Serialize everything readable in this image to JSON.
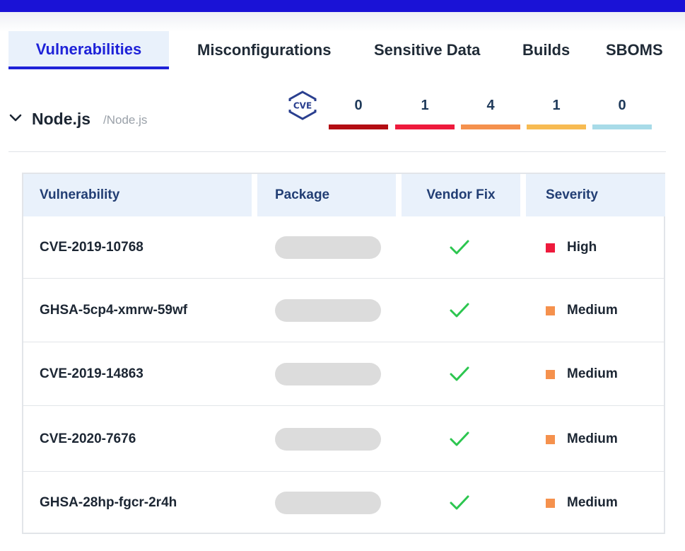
{
  "tabs": [
    {
      "label": "Vulnerabilities",
      "active": true
    },
    {
      "label": "Misconfigurations",
      "active": false
    },
    {
      "label": "Sensitive Data",
      "active": false
    },
    {
      "label": "Builds",
      "active": false
    },
    {
      "label": "SBOMS",
      "active": false
    }
  ],
  "group": {
    "name": "Node.js",
    "path": "/Node.js",
    "expanded": true,
    "icon": "chevron-down-icon"
  },
  "summary": {
    "icon": "cve-logo-icon",
    "counts": [
      {
        "value": "0",
        "color": "#b30d12"
      },
      {
        "value": "1",
        "color": "#ee1a3c"
      },
      {
        "value": "4",
        "color": "#f5914d"
      },
      {
        "value": "1",
        "color": "#f7bb52"
      },
      {
        "value": "0",
        "color": "#a8dbe8"
      }
    ]
  },
  "table": {
    "headers": [
      "Vulnerability",
      "Package",
      "Vendor Fix",
      "Severity"
    ],
    "rows": [
      {
        "id": "CVE-2019-10768",
        "vendor_fix": "check-icon",
        "severity": "High",
        "severity_color": "#ee1a3c"
      },
      {
        "id": "GHSA-5cp4-xmrw-59wf",
        "vendor_fix": "check-icon",
        "severity": "Medium",
        "severity_color": "#f5914d"
      },
      {
        "id": "CVE-2019-14863",
        "vendor_fix": "check-icon",
        "severity": "Medium",
        "severity_color": "#f5914d"
      },
      {
        "id": "CVE-2020-7676",
        "vendor_fix": "check-icon",
        "severity": "Medium",
        "severity_color": "#f5914d"
      },
      {
        "id": "GHSA-28hp-fgcr-2r4h",
        "vendor_fix": "check-icon",
        "severity": "Medium",
        "severity_color": "#f5914d"
      }
    ]
  },
  "colors": {
    "accent": "#1e22d8",
    "topbar": "#1a12d6",
    "check": "#2cc64f",
    "header_bg": "#e9f1fb"
  }
}
